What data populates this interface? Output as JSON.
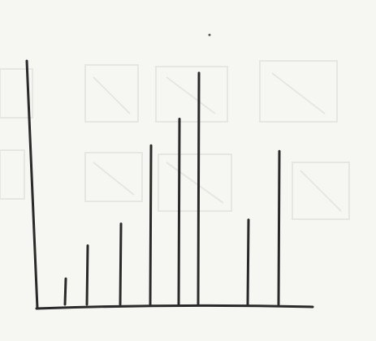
{
  "chart_data": {
    "type": "bar",
    "categories": [
      null,
      null,
      null,
      null,
      null,
      null,
      null,
      null
    ],
    "values": [
      35,
      76,
      103,
      200,
      233,
      290,
      108,
      193
    ],
    "color": "#2a2a2a",
    "ylim": [
      0,
      305
    ]
  }
}
